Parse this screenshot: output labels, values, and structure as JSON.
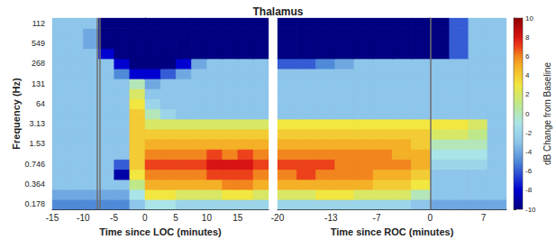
{
  "chart_data": {
    "type": "heatmap",
    "title": "Thalamus",
    "ylabel": "Frequency (Hz)",
    "y": [
      0.178,
      null,
      0.364,
      null,
      0.746,
      null,
      1.53,
      null,
      3.13,
      null,
      64,
      null,
      131,
      null,
      268,
      null,
      549,
      null,
      112
    ],
    "colorbar": {
      "label": "dB Change from Baseline",
      "range": [
        -10,
        10
      ],
      "ticks": [
        -10,
        -8,
        -6,
        -4,
        -2,
        0,
        2,
        4,
        6,
        8,
        10
      ]
    },
    "panels": [
      {
        "xlabel": "Time since LOC (minutes)",
        "xlim": [
          -15,
          20
        ],
        "xticks": [
          -15,
          -10,
          -5,
          0,
          5,
          10,
          15
        ],
        "vlines": [
          -7.7,
          -7.3
        ],
        "x": [
          -13.75,
          -11.25,
          -8.75,
          -6.25,
          -3.75,
          -1.25,
          1.25,
          3.75,
          6.25,
          8.75,
          11.25,
          13.75,
          16.25,
          18.75
        ],
        "cells": [
          [
            -5,
            -5,
            -5,
            -5,
            -5,
            -3,
            -1,
            -1,
            -2,
            -2,
            -2,
            -2,
            -2,
            -2
          ],
          [
            -4,
            -4,
            -4,
            -4,
            -4,
            -1,
            3,
            3,
            2,
            2,
            2,
            3,
            3,
            2
          ],
          [
            -3,
            -3,
            -3,
            -3,
            -3,
            1,
            5,
            5,
            5,
            5,
            5,
            6,
            6,
            5
          ],
          [
            -3,
            -3,
            -3,
            -3,
            -9,
            3,
            6,
            6,
            6,
            6,
            7,
            7,
            7,
            6
          ],
          [
            -3,
            -3,
            -3,
            -3,
            -6,
            4,
            7,
            7,
            7,
            7,
            8,
            8,
            8,
            7
          ],
          [
            -3,
            -3,
            -3,
            -3,
            -3,
            4,
            6,
            6,
            6,
            6,
            7,
            6,
            7,
            6
          ],
          [
            -3,
            -3,
            -3,
            -3,
            -3,
            4,
            5,
            5,
            5,
            5,
            5,
            5,
            5,
            5
          ],
          [
            -3,
            -3,
            -3,
            -3,
            -3,
            4,
            4,
            4,
            4,
            4,
            4,
            4,
            4,
            4
          ],
          [
            -3,
            -3,
            -3,
            -3,
            -3,
            4,
            2,
            2,
            2,
            2,
            2,
            2,
            2,
            2
          ],
          [
            -3,
            -3,
            -3,
            -3,
            -3,
            4,
            0,
            -2,
            -3,
            -3,
            -3,
            -3,
            -3,
            -3
          ],
          [
            -3,
            -3,
            -3,
            -3,
            -3,
            3,
            -2,
            -3,
            -3,
            -3,
            -3,
            -3,
            -3,
            -3
          ],
          [
            -3,
            -3,
            -3,
            -3,
            -3,
            2,
            -3,
            -3,
            -3,
            -3,
            -3,
            -3,
            -3,
            -3
          ],
          [
            -3,
            -3,
            -3,
            -3,
            -3,
            0,
            -4,
            -3,
            -3,
            -3,
            -3,
            -3,
            -3,
            -3
          ],
          [
            -3,
            -3,
            -3,
            -3,
            -5,
            -8,
            -8,
            -6,
            -4,
            -3,
            -3,
            -3,
            -3,
            -3
          ],
          [
            -3,
            -3,
            -3,
            -3,
            -8,
            -10,
            -10,
            -10,
            -8,
            -4,
            -3,
            -3,
            -3,
            -3
          ],
          [
            -3,
            -3,
            -3,
            -8,
            -10,
            -10,
            -10,
            -10,
            -10,
            -10,
            -10,
            -10,
            -10,
            -10
          ],
          [
            -3,
            -3,
            -4,
            -10,
            -10,
            -10,
            -10,
            -10,
            -10,
            -10,
            -10,
            -10,
            -10,
            -10
          ],
          [
            -3,
            -3,
            -4,
            -10,
            -10,
            -10,
            -10,
            -10,
            -10,
            -10,
            -10,
            -10,
            -10,
            -10
          ],
          [
            -3,
            -3,
            -3,
            -10,
            -10,
            -10,
            -10,
            -10,
            -10,
            -10,
            -10,
            -10,
            -10,
            -10
          ]
        ]
      },
      {
        "xlabel": "Time since ROC (minutes)",
        "xlim": [
          -20,
          10
        ],
        "xticks": [
          -20,
          -13,
          -7,
          0,
          7
        ],
        "vlines": [
          0
        ],
        "x": [
          -18.75,
          -16.25,
          -13.75,
          -11.25,
          -8.75,
          -6.25,
          -3.75,
          -1.25,
          1.25,
          3.75,
          6.25,
          8.75
        ],
        "cells": [
          [
            -2,
            -2,
            -2,
            -2,
            -2,
            -2,
            -2,
            -3,
            -4,
            -4,
            -4,
            -4
          ],
          [
            2,
            2,
            3,
            3,
            2,
            2,
            2,
            0,
            -3,
            -3,
            -3,
            -3
          ],
          [
            5,
            5,
            5,
            5,
            5,
            4,
            4,
            3,
            -3,
            -3,
            -3,
            -3
          ],
          [
            6,
            7,
            6,
            6,
            6,
            5,
            5,
            4,
            -3,
            -3,
            -3,
            -3
          ],
          [
            7,
            7,
            7,
            6,
            6,
            6,
            6,
            5,
            -2,
            -2,
            -2,
            -3
          ],
          [
            6,
            6,
            6,
            6,
            6,
            6,
            5,
            5,
            -1,
            -1,
            -1,
            -3
          ],
          [
            5,
            5,
            5,
            5,
            5,
            5,
            5,
            4,
            0,
            0,
            0,
            -3
          ],
          [
            4,
            4,
            4,
            4,
            4,
            4,
            4,
            4,
            2,
            2,
            1,
            -3
          ],
          [
            3,
            3,
            3,
            3,
            3,
            3,
            3,
            3,
            3,
            3,
            2,
            -3
          ],
          [
            -3,
            -3,
            -3,
            -3,
            -3,
            -3,
            -3,
            -3,
            -3,
            -3,
            -3,
            -3
          ],
          [
            -3,
            -3,
            -3,
            -3,
            -3,
            -3,
            -3,
            -3,
            -3,
            -3,
            -3,
            -3
          ],
          [
            -3,
            -3,
            -3,
            -3,
            -3,
            -3,
            -3,
            -3,
            -3,
            -3,
            -3,
            -3
          ],
          [
            -3,
            -3,
            -3,
            -3,
            -3,
            -3,
            -3,
            -3,
            -3,
            -3,
            -3,
            -3
          ],
          [
            -3,
            -3,
            -3,
            -3,
            -3,
            -3,
            -3,
            -3,
            -3,
            -3,
            -3,
            -3
          ],
          [
            -6,
            -6,
            -5,
            -4,
            -3,
            -3,
            -3,
            -3,
            -3,
            -3,
            -3,
            -3
          ],
          [
            -10,
            -10,
            -10,
            -10,
            -10,
            -10,
            -10,
            -10,
            -10,
            -6,
            -3,
            -3
          ],
          [
            -10,
            -10,
            -10,
            -10,
            -10,
            -10,
            -10,
            -10,
            -10,
            -6,
            -3,
            -3
          ],
          [
            -10,
            -10,
            -10,
            -10,
            -10,
            -10,
            -10,
            -10,
            -10,
            -6,
            -3,
            -3
          ],
          [
            -10,
            -10,
            -10,
            -10,
            -10,
            -10,
            -10,
            -10,
            -10,
            -6,
            -3,
            -3
          ]
        ]
      }
    ]
  }
}
